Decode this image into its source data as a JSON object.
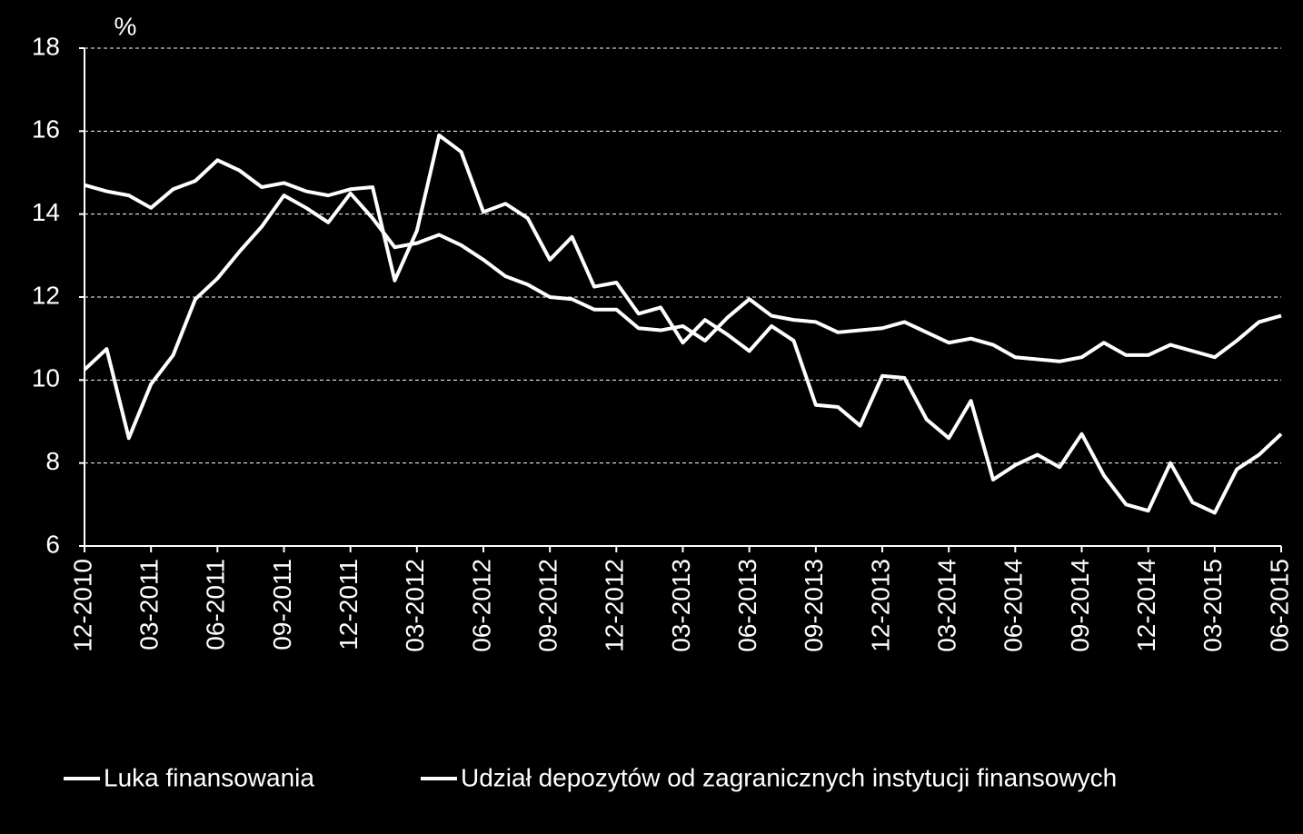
{
  "chart_data": {
    "type": "line",
    "y_unit": "%",
    "categories": [
      "12-2010",
      null,
      null,
      "03-2011",
      null,
      null,
      "06-2011",
      null,
      null,
      "09-2011",
      null,
      null,
      "12-2011",
      null,
      null,
      "03-2012",
      null,
      null,
      "06-2012",
      null,
      null,
      "09-2012",
      null,
      null,
      "12-2012",
      null,
      null,
      "03-2013",
      null,
      null,
      "06-2013",
      null,
      null,
      "09-2013",
      null,
      null,
      "12-2013",
      null,
      null,
      "03-2014",
      null,
      null,
      "06-2014",
      null,
      null,
      "09-2014",
      null,
      null,
      "12-2014",
      null,
      null,
      "03-2015",
      null,
      null,
      "06-2015"
    ],
    "series": [
      {
        "name": "Luka finansowania",
        "color": "#ffffff",
        "values": [
          14.7,
          14.55,
          14.45,
          14.15,
          14.6,
          14.8,
          15.3,
          15.05,
          14.65,
          14.75,
          14.55,
          14.45,
          14.6,
          14.65,
          12.4,
          13.6,
          15.9,
          15.5,
          14.05,
          14.25,
          13.9,
          12.9,
          13.45,
          12.25,
          12.35,
          11.6,
          11.75,
          10.9,
          11.45,
          11.1,
          10.7,
          11.3,
          10.95,
          9.4,
          9.35,
          8.9,
          10.1,
          10.05,
          9.05,
          8.6,
          9.5,
          7.6,
          7.95,
          8.2,
          7.9,
          8.7,
          7.7,
          7.0,
          6.85,
          8.0,
          7.05,
          6.8,
          7.85,
          8.2,
          8.7
        ]
      },
      {
        "name": "Udział depozytów od zagranicznych instytucji finansowych",
        "color": "#ffffff",
        "values": [
          10.25,
          10.75,
          8.6,
          9.9,
          10.6,
          11.95,
          12.45,
          13.1,
          13.7,
          14.45,
          14.15,
          13.8,
          14.5,
          13.9,
          13.2,
          13.3,
          13.5,
          13.25,
          12.9,
          12.5,
          12.3,
          12.0,
          11.95,
          11.7,
          11.7,
          11.25,
          11.2,
          11.3,
          10.95,
          11.5,
          11.95,
          11.55,
          11.45,
          11.4,
          11.15,
          11.2,
          11.25,
          11.4,
          11.15,
          10.9,
          11.0,
          10.85,
          10.55,
          10.5,
          10.45,
          10.55,
          10.9,
          10.6,
          10.6,
          10.85,
          10.7,
          10.55,
          10.95,
          11.4,
          11.55
        ]
      }
    ],
    "ylim": [
      6,
      18
    ],
    "yticks": [
      6,
      8,
      10,
      12,
      14,
      16,
      18
    ],
    "grid": true,
    "legend": "bottom"
  }
}
